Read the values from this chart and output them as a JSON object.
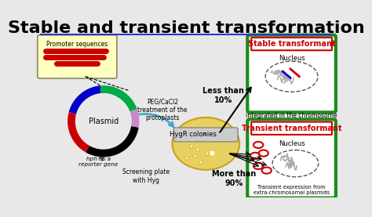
{
  "title": "Stable and transient transformation",
  "title_fontsize": 16,
  "bg_color": "#e8e8e8",
  "white": "#ffffff",
  "green": "#1a8c1a",
  "red": "#cc0000",
  "blue": "#0000cc",
  "black": "#000000",
  "yellow_plate": "#e8d060",
  "promoter_box_color": "#ffffc0",
  "stable_label": "Stable transformant",
  "transient_label": "Transient transformant",
  "nucleus_label": "Nucleus",
  "integrated_label": "integrated in the chromosome",
  "transient_expr_label": "Transient expression from\nextra-chromosomal plasmids",
  "less_than": "Less than\n10%",
  "more_than": "More than\n90%",
  "peg_label": "PEG/CaCl2\ntreatment of the\nprotoplasts",
  "hygr_label": "HygR colonies",
  "plasmid_label": "Plasmid",
  "hph_label": "hph as a\nreporter gene",
  "screening_label": "Screening plate\nwith Hyg",
  "promoter_label": "Promoter sequences"
}
